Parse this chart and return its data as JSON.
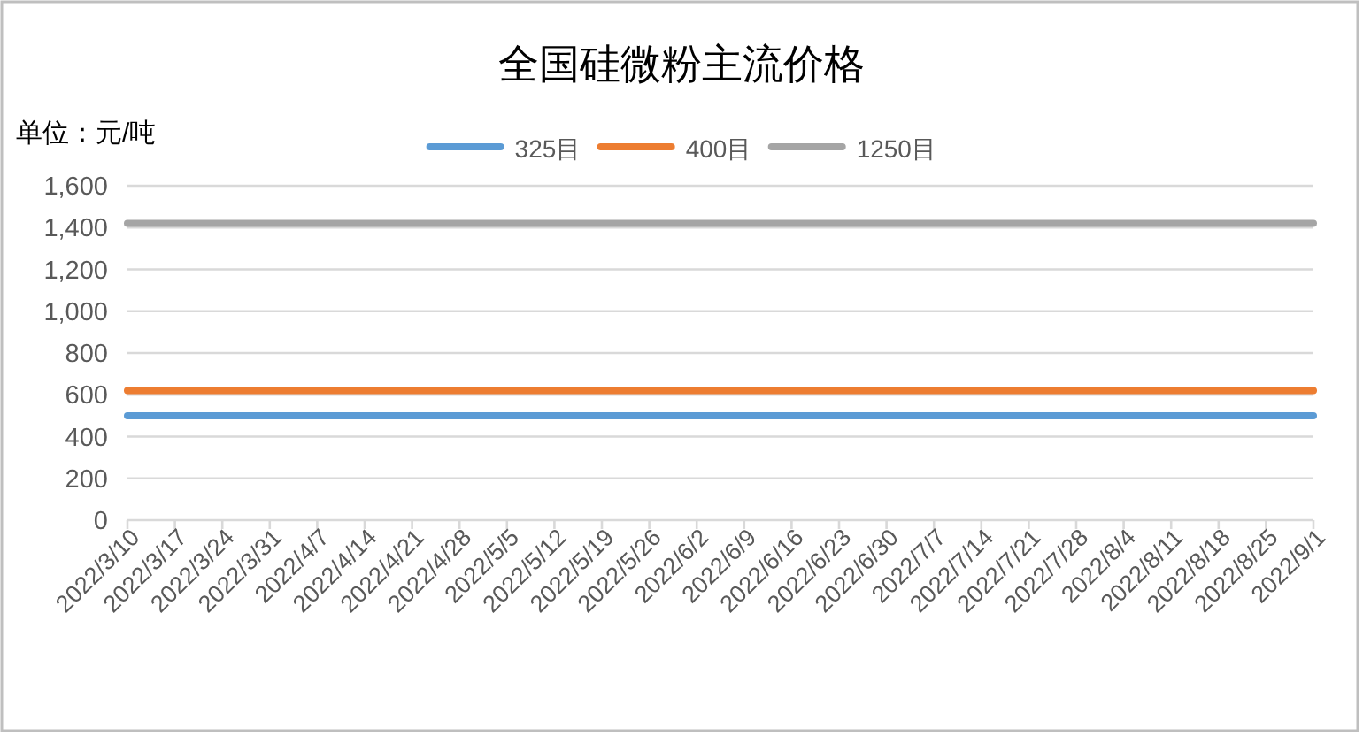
{
  "chart_data": {
    "type": "line",
    "title": "全国硅微粉主流价格",
    "ylabel": "单位：元/吨",
    "categories": [
      "2022/3/10",
      "2022/3/17",
      "2022/3/24",
      "2022/3/31",
      "2022/4/7",
      "2022/4/14",
      "2022/4/21",
      "2022/4/28",
      "2022/5/5",
      "2022/5/12",
      "2022/5/19",
      "2022/5/26",
      "2022/6/2",
      "2022/6/9",
      "2022/6/16",
      "2022/6/23",
      "2022/6/30",
      "2022/7/7",
      "2022/7/14",
      "2022/7/21",
      "2022/7/28",
      "2022/8/4",
      "2022/8/11",
      "2022/8/18",
      "2022/8/25",
      "2022/9/1"
    ],
    "series": [
      {
        "name": "325目",
        "color": "#5b9bd5",
        "values": [
          500,
          500,
          500,
          500,
          500,
          500,
          500,
          500,
          500,
          500,
          500,
          500,
          500,
          500,
          500,
          500,
          500,
          500,
          500,
          500,
          500,
          500,
          500,
          500,
          500,
          500
        ]
      },
      {
        "name": "400目",
        "color": "#ed7d31",
        "values": [
          620,
          620,
          620,
          620,
          620,
          620,
          620,
          620,
          620,
          620,
          620,
          620,
          620,
          620,
          620,
          620,
          620,
          620,
          620,
          620,
          620,
          620,
          620,
          620,
          620,
          620
        ]
      },
      {
        "name": "1250目",
        "color": "#a5a5a5",
        "values": [
          1420,
          1420,
          1420,
          1420,
          1420,
          1420,
          1420,
          1420,
          1420,
          1420,
          1420,
          1420,
          1420,
          1420,
          1420,
          1420,
          1420,
          1420,
          1420,
          1420,
          1420,
          1420,
          1420,
          1420,
          1420,
          1420
        ]
      }
    ],
    "ylim": [
      0,
      1600
    ],
    "yticks": [
      0,
      200,
      400,
      600,
      800,
      {
        "value": 1000,
        "label": "1,000"
      },
      {
        "value": 1200,
        "label": "1,200"
      },
      {
        "value": 1400,
        "label": "1,400"
      },
      {
        "value": 1600,
        "label": "1,600"
      }
    ],
    "grid": "y",
    "legend": "top"
  }
}
